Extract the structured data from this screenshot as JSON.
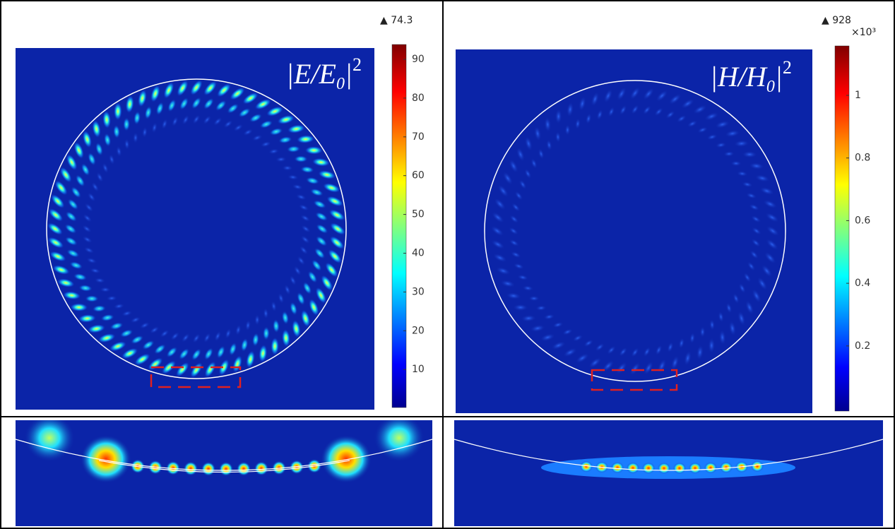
{
  "panels": [
    {
      "field_label": {
        "open": "|E/E",
        "subscript": "0",
        "close": "|",
        "superscript": "2"
      },
      "max_label": "▲ 74.3",
      "colorbar_ticks": [
        "90",
        "80",
        "70",
        "60",
        "50",
        "40",
        "30",
        "20",
        "10"
      ]
    },
    {
      "field_label": {
        "open": "|H/H",
        "subscript": "0",
        "close": "|",
        "superscript": "2"
      },
      "max_label": "▲ 928",
      "colorbar_multiplier": "×10³",
      "colorbar_ticks": [
        "1",
        "0.8",
        "0.6",
        "0.4",
        "0.2"
      ]
    }
  ]
}
